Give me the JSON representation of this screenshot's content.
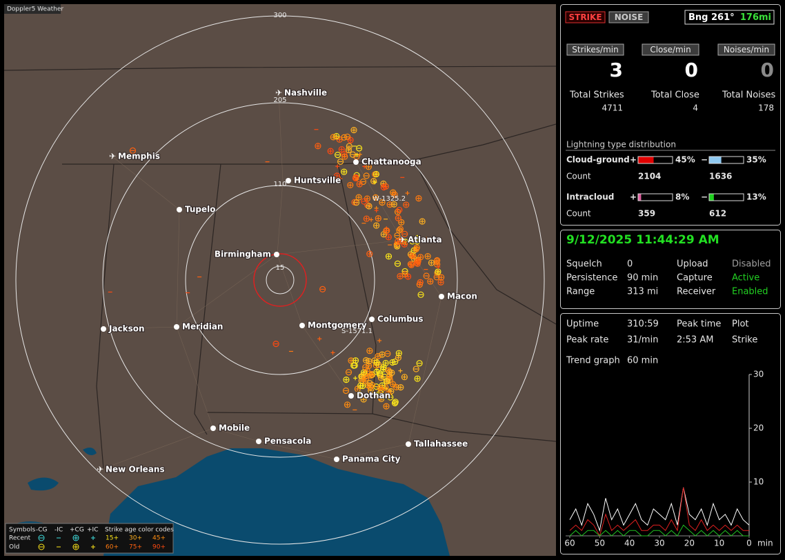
{
  "window_title": "Doppler5 Weather",
  "map": {
    "range_labels": [
      "300",
      "205",
      "110",
      "15"
    ],
    "storm_labels": [
      "W-1325.2",
      "S-1571.1"
    ],
    "cities": [
      {
        "name": "Nashville",
        "icon": "plane"
      },
      {
        "name": "Memphis",
        "icon": "plane"
      },
      {
        "name": "Chattanooga",
        "icon": "dot"
      },
      {
        "name": "Huntsville",
        "icon": "dot"
      },
      {
        "name": "Tupelo",
        "icon": "dot"
      },
      {
        "name": "Birmingham",
        "icon": "dot"
      },
      {
        "name": "Atlanta",
        "icon": "plane"
      },
      {
        "name": "Macon",
        "icon": "dot"
      },
      {
        "name": "Columbus",
        "icon": "dot"
      },
      {
        "name": "Montgomery",
        "icon": "dot"
      },
      {
        "name": "Meridian",
        "icon": "dot"
      },
      {
        "name": "Jackson",
        "icon": "dot"
      },
      {
        "name": "Dothan",
        "icon": "dot"
      },
      {
        "name": "Mobile",
        "icon": "dot"
      },
      {
        "name": "Pensacola",
        "icon": "dot"
      },
      {
        "name": "Tallahassee",
        "icon": "dot"
      },
      {
        "name": "Panama City",
        "icon": "dot"
      },
      {
        "name": "New Orleans",
        "icon": "plane"
      }
    ]
  },
  "legend": {
    "headers": [
      "Symbols",
      "-CG",
      "-IC",
      "+CG",
      "+IC",
      "Strike age color codes"
    ],
    "rows": [
      {
        "label": "Recent",
        "symbol_color": "#40e0e0",
        "ages": [
          {
            "label": "15+",
            "color": "#ffe81a"
          },
          {
            "label": "30+",
            "color": "#ffb020"
          },
          {
            "label": "45+",
            "color": "#ff8c10"
          }
        ]
      },
      {
        "label": "Old",
        "symbol_color": "#ffe81a",
        "ages": [
          {
            "label": "60+",
            "color": "#ff7a10"
          },
          {
            "label": "75+",
            "color": "#ff6010"
          },
          {
            "label": "90+",
            "color": "#ff4a10"
          }
        ]
      }
    ]
  },
  "status": {
    "strike": "STRIKE",
    "noise": "NOISE",
    "bearing": "Bng 261°",
    "distance": "176mi"
  },
  "rates": [
    {
      "label": "Strikes/min",
      "value": 3,
      "color": "#ffffff"
    },
    {
      "label": "Close/min",
      "value": 0,
      "color": "#ffffff"
    },
    {
      "label": "Noises/min",
      "value": 0,
      "color": "#8a8a8a"
    }
  ],
  "totals": [
    {
      "label": "Total Strikes",
      "value": 4711
    },
    {
      "label": "Total Close",
      "value": 4
    },
    {
      "label": "Total Noises",
      "value": 178
    }
  ],
  "distribution": {
    "title": "Lightning type distribution",
    "count_label": "Count",
    "rows": [
      {
        "label": "Cloud-ground",
        "positive": {
          "sign": "+",
          "percent": {
            "value": 45,
            "label": "45%"
          },
          "count": 2104,
          "color": "#e00000"
        },
        "negative": {
          "sign": "−",
          "percent": {
            "value": 35,
            "label": "35%"
          },
          "count": 1636,
          "color": "#8ec8f0"
        }
      },
      {
        "label": "Intracloud",
        "positive": {
          "sign": "+",
          "percent": {
            "value": 8,
            "label": "8%"
          },
          "count": 359,
          "color": "#e060a0"
        },
        "negative": {
          "sign": "−",
          "percent": {
            "value": 13,
            "label": "13%"
          },
          "count": 612,
          "color": "#20d020"
        }
      }
    ]
  },
  "clock": "9/12/2025 11:44:29 AM",
  "settings": [
    [
      {
        "label": "Squelch",
        "value": "0",
        "color": "#e0e0e0"
      },
      {
        "label": "Upload",
        "value": "Disabled",
        "color": "#a0a0a0"
      }
    ],
    [
      {
        "label": "Persistence",
        "value": "90 min",
        "color": "#e0e0e0"
      },
      {
        "label": "Capture",
        "value": "Active",
        "color": "#22d022"
      }
    ],
    [
      {
        "label": "Range",
        "value": "313 mi",
        "color": "#e0e0e0"
      },
      {
        "label": "Receiver",
        "value": "Enabled",
        "color": "#22d022"
      }
    ]
  ],
  "stats": [
    {
      "label": "Uptime",
      "value": "310:59"
    },
    {
      "label": "Peak rate",
      "value": "31/min"
    },
    {
      "label": "Peak time",
      "value": "2:53 AM"
    },
    {
      "label": "Plot",
      "value": "Strike"
    },
    {
      "label": "Trend graph",
      "value": "60 min"
    }
  ],
  "trend": {
    "xlim": [
      60,
      0
    ],
    "ylim": [
      0,
      30
    ],
    "yticks": [
      10,
      20,
      30
    ],
    "xticks": [
      60,
      50,
      40,
      30,
      20,
      10,
      0
    ],
    "x_unit": "min",
    "x": [
      60,
      58,
      56,
      54,
      52,
      50,
      48,
      46,
      44,
      42,
      40,
      38,
      36,
      34,
      32,
      30,
      28,
      26,
      24,
      22,
      20,
      18,
      16,
      14,
      12,
      10,
      8,
      6,
      4,
      2,
      0
    ],
    "series": [
      {
        "color": "#ffffff",
        "values": [
          3,
          5,
          2,
          6,
          4,
          1,
          7,
          3,
          5,
          2,
          4,
          6,
          3,
          2,
          5,
          4,
          3,
          6,
          2,
          9,
          4,
          3,
          5,
          2,
          6,
          3,
          4,
          2,
          5,
          3,
          2
        ]
      },
      {
        "color": "#e02020",
        "values": [
          1,
          2,
          1,
          3,
          2,
          0,
          4,
          1,
          2,
          1,
          2,
          3,
          1,
          1,
          2,
          2,
          1,
          3,
          1,
          9,
          2,
          1,
          3,
          1,
          2,
          1,
          2,
          1,
          2,
          1,
          1
        ]
      },
      {
        "color": "#20c020",
        "values": [
          0,
          1,
          0,
          1,
          1,
          0,
          1,
          0,
          1,
          0,
          1,
          1,
          0,
          0,
          1,
          1,
          0,
          1,
          0,
          2,
          1,
          0,
          1,
          0,
          1,
          0,
          1,
          0,
          1,
          0,
          0
        ]
      }
    ]
  }
}
